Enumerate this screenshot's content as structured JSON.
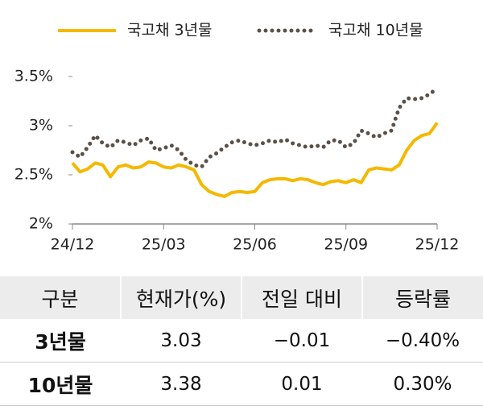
{
  "chart_data": {
    "type": "line",
    "x": [
      0,
      0.25,
      0.5,
      0.75,
      1,
      1.25,
      1.5,
      1.75,
      2,
      2.25,
      2.5,
      2.75,
      3,
      3.25,
      3.5,
      3.75,
      4,
      4.25,
      4.5,
      4.75,
      5,
      5.25,
      5.5,
      5.75,
      6,
      6.25,
      6.5,
      6.75,
      7,
      7.25,
      7.5,
      7.75,
      8,
      8.25,
      8.5,
      8.75,
      9,
      9.25,
      9.5,
      9.75,
      10,
      10.25,
      10.5,
      10.75,
      11,
      11.25,
      11.5,
      11.75,
      12
    ],
    "series": [
      {
        "name": "국고채 3년물",
        "color": "#f5b800",
        "style": "solid",
        "values": [
          2.62,
          2.53,
          2.56,
          2.62,
          2.6,
          2.48,
          2.58,
          2.6,
          2.57,
          2.58,
          2.63,
          2.62,
          2.58,
          2.57,
          2.6,
          2.58,
          2.55,
          2.4,
          2.33,
          2.3,
          2.28,
          2.32,
          2.33,
          2.32,
          2.33,
          2.42,
          2.45,
          2.46,
          2.46,
          2.44,
          2.46,
          2.45,
          2.42,
          2.4,
          2.43,
          2.44,
          2.42,
          2.45,
          2.42,
          2.55,
          2.57,
          2.56,
          2.55,
          2.6,
          2.75,
          2.85,
          2.9,
          2.92,
          3.03
        ]
      },
      {
        "name": "국고채 10년물",
        "color": "#5a5048",
        "style": "dotted",
        "values": [
          2.73,
          2.68,
          2.78,
          2.9,
          2.82,
          2.78,
          2.85,
          2.83,
          2.8,
          2.85,
          2.87,
          2.75,
          2.77,
          2.8,
          2.75,
          2.65,
          2.6,
          2.58,
          2.68,
          2.72,
          2.78,
          2.83,
          2.85,
          2.82,
          2.8,
          2.82,
          2.85,
          2.83,
          2.86,
          2.82,
          2.8,
          2.78,
          2.8,
          2.78,
          2.85,
          2.85,
          2.78,
          2.82,
          2.95,
          2.92,
          2.88,
          2.92,
          2.95,
          3.18,
          3.28,
          3.27,
          3.28,
          3.32,
          3.38
        ]
      }
    ],
    "xlim": [
      0,
      12
    ],
    "xticks": [
      {
        "value": 0,
        "label": "24/12"
      },
      {
        "value": 3,
        "label": "25/03"
      },
      {
        "value": 6,
        "label": "25/06"
      },
      {
        "value": 9,
        "label": "25/09"
      },
      {
        "value": 12,
        "label": "25/12"
      }
    ],
    "ylim": [
      2,
      3.5
    ],
    "yticks": [
      {
        "value": 2,
        "label": "2%"
      },
      {
        "value": 2.5,
        "label": "2.5%"
      },
      {
        "value": 3,
        "label": "3%"
      },
      {
        "value": 3.5,
        "label": "3.5%"
      }
    ],
    "legend": "top"
  },
  "table": {
    "header": [
      "구분",
      "현재가(%)",
      "전일 대비",
      "등락률"
    ],
    "rows": [
      [
        "3년물",
        "3.03",
        "−0.01",
        "−0.40%"
      ],
      [
        "10년물",
        "3.38",
        "0.01",
        "0.30%"
      ]
    ]
  }
}
